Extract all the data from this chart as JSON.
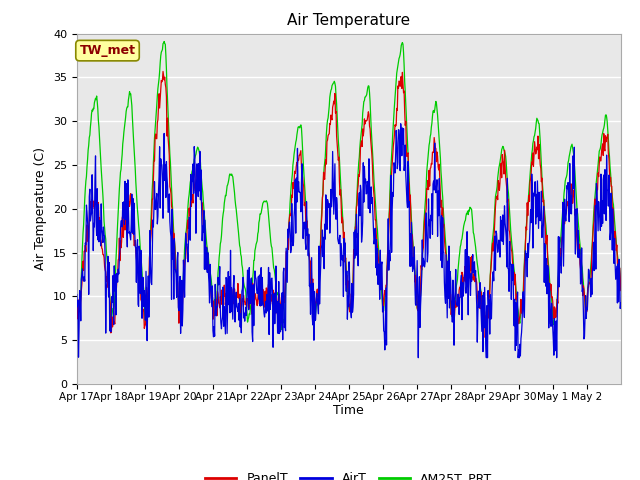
{
  "title": "Air Temperature",
  "xlabel": "Time",
  "ylabel": "Air Temperature (C)",
  "ylim": [
    0,
    40
  ],
  "yticks": [
    0,
    5,
    10,
    15,
    20,
    25,
    30,
    35,
    40
  ],
  "annotation_text": "TW_met",
  "annotation_color": "#8B0000",
  "annotation_bg": "#FFFFA0",
  "annotation_border": "#888800",
  "line_colors": {
    "PanelT": "#DD0000",
    "AirT": "#0000DD",
    "AM25T_PRT": "#00CC00"
  },
  "bg_color": "#E8E8E8",
  "grid_color": "#FFFFFF",
  "n_points": 960,
  "xtick_labels": [
    "Apr 17",
    "Apr 18",
    "Apr 19",
    "Apr 20",
    "Apr 21",
    "Apr 22",
    "Apr 23",
    "Apr 24",
    "Apr 25",
    "Apr 26",
    "Apr 27",
    "Apr 28",
    "Apr 29",
    "Apr 30",
    "May 1",
    "May 2"
  ],
  "figsize": [
    6.4,
    4.8
  ],
  "dpi": 100
}
